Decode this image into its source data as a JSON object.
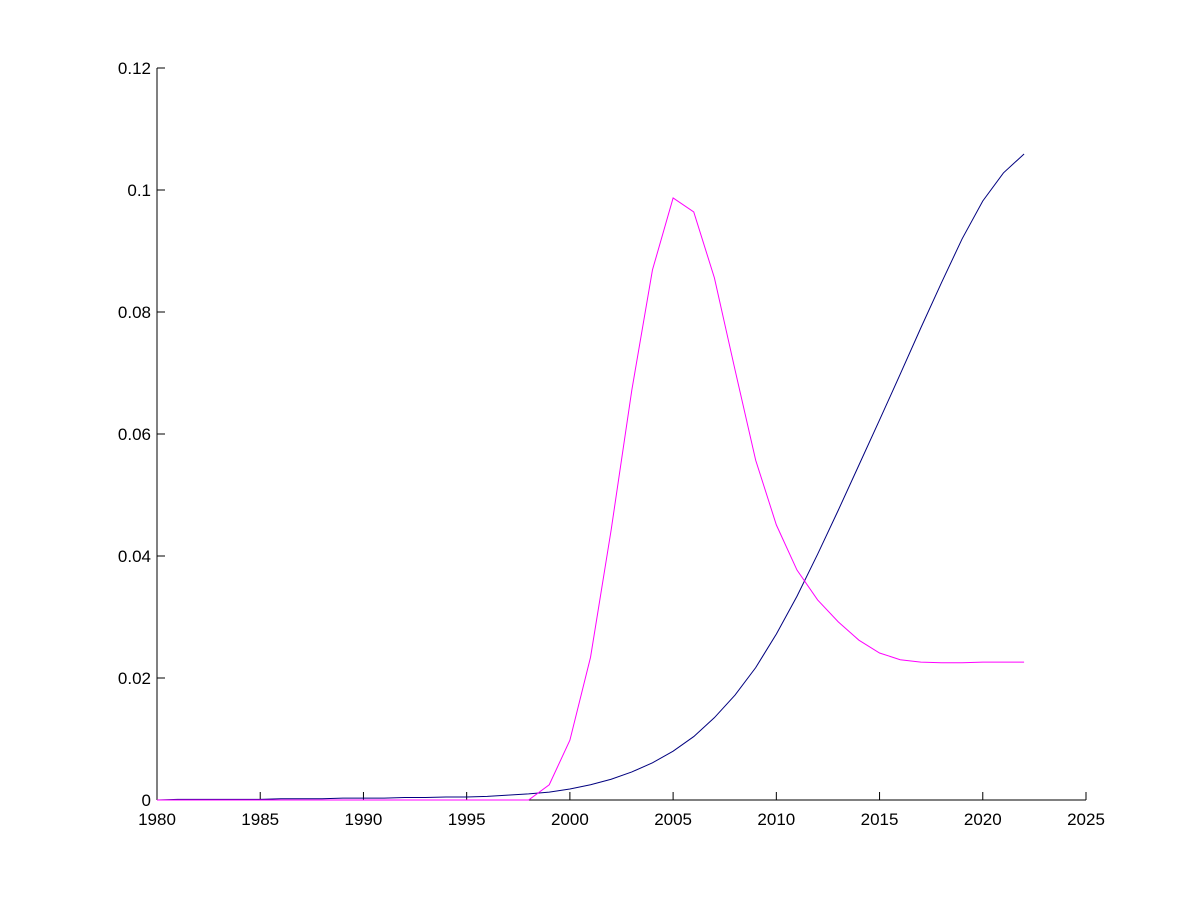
{
  "chart_data": {
    "type": "line",
    "x": [
      1980,
      1981,
      1982,
      1983,
      1984,
      1985,
      1986,
      1987,
      1988,
      1989,
      1990,
      1991,
      1992,
      1993,
      1994,
      1995,
      1996,
      1997,
      1998,
      1999,
      2000,
      2001,
      2002,
      2003,
      2004,
      2005,
      2006,
      2007,
      2008,
      2009,
      2010,
      2011,
      2012,
      2013,
      2014,
      2015,
      2016,
      2017,
      2018,
      2019,
      2020,
      2021,
      2022
    ],
    "series": [
      {
        "color": "#00007f",
        "values": [
          0,
          0.0001,
          0.0001,
          0.0001,
          0.0001,
          0.0001,
          0.0002,
          0.0002,
          0.0002,
          0.0003,
          0.0003,
          0.0003,
          0.0004,
          0.0004,
          0.0005,
          0.0005,
          0.0006,
          0.0008,
          0.001,
          0.0013,
          0.0018,
          0.0025,
          0.0034,
          0.0046,
          0.0061,
          0.008,
          0.0104,
          0.0135,
          0.0172,
          0.0217,
          0.0272,
          0.0334,
          0.0403,
          0.0475,
          0.0549,
          0.0623,
          0.0698,
          0.0774,
          0.0848,
          0.092,
          0.0982,
          0.1028,
          0.1059
        ]
      },
      {
        "color": "#ff00ff",
        "values": [
          0,
          0,
          0,
          0,
          0,
          0,
          0,
          0,
          0,
          0,
          0,
          0,
          0,
          0,
          0,
          0,
          0,
          0,
          0,
          0.0025,
          0.0098,
          0.0234,
          0.0443,
          0.0672,
          0.0869,
          0.0987,
          0.0964,
          0.0856,
          0.0705,
          0.0557,
          0.0451,
          0.0377,
          0.0328,
          0.0292,
          0.0262,
          0.0241,
          0.023,
          0.0226,
          0.0225,
          0.0225,
          0.0226,
          0.0226,
          0.0226
        ]
      }
    ],
    "xlim": [
      1980,
      2025
    ],
    "xticks": [
      1980,
      1985,
      1990,
      1995,
      2000,
      2005,
      2010,
      2015,
      2020,
      2025
    ],
    "ylim": [
      0,
      0.12
    ],
    "yticks": [
      0,
      0.02,
      0.04,
      0.06,
      0.08,
      0.1,
      0.12
    ]
  }
}
